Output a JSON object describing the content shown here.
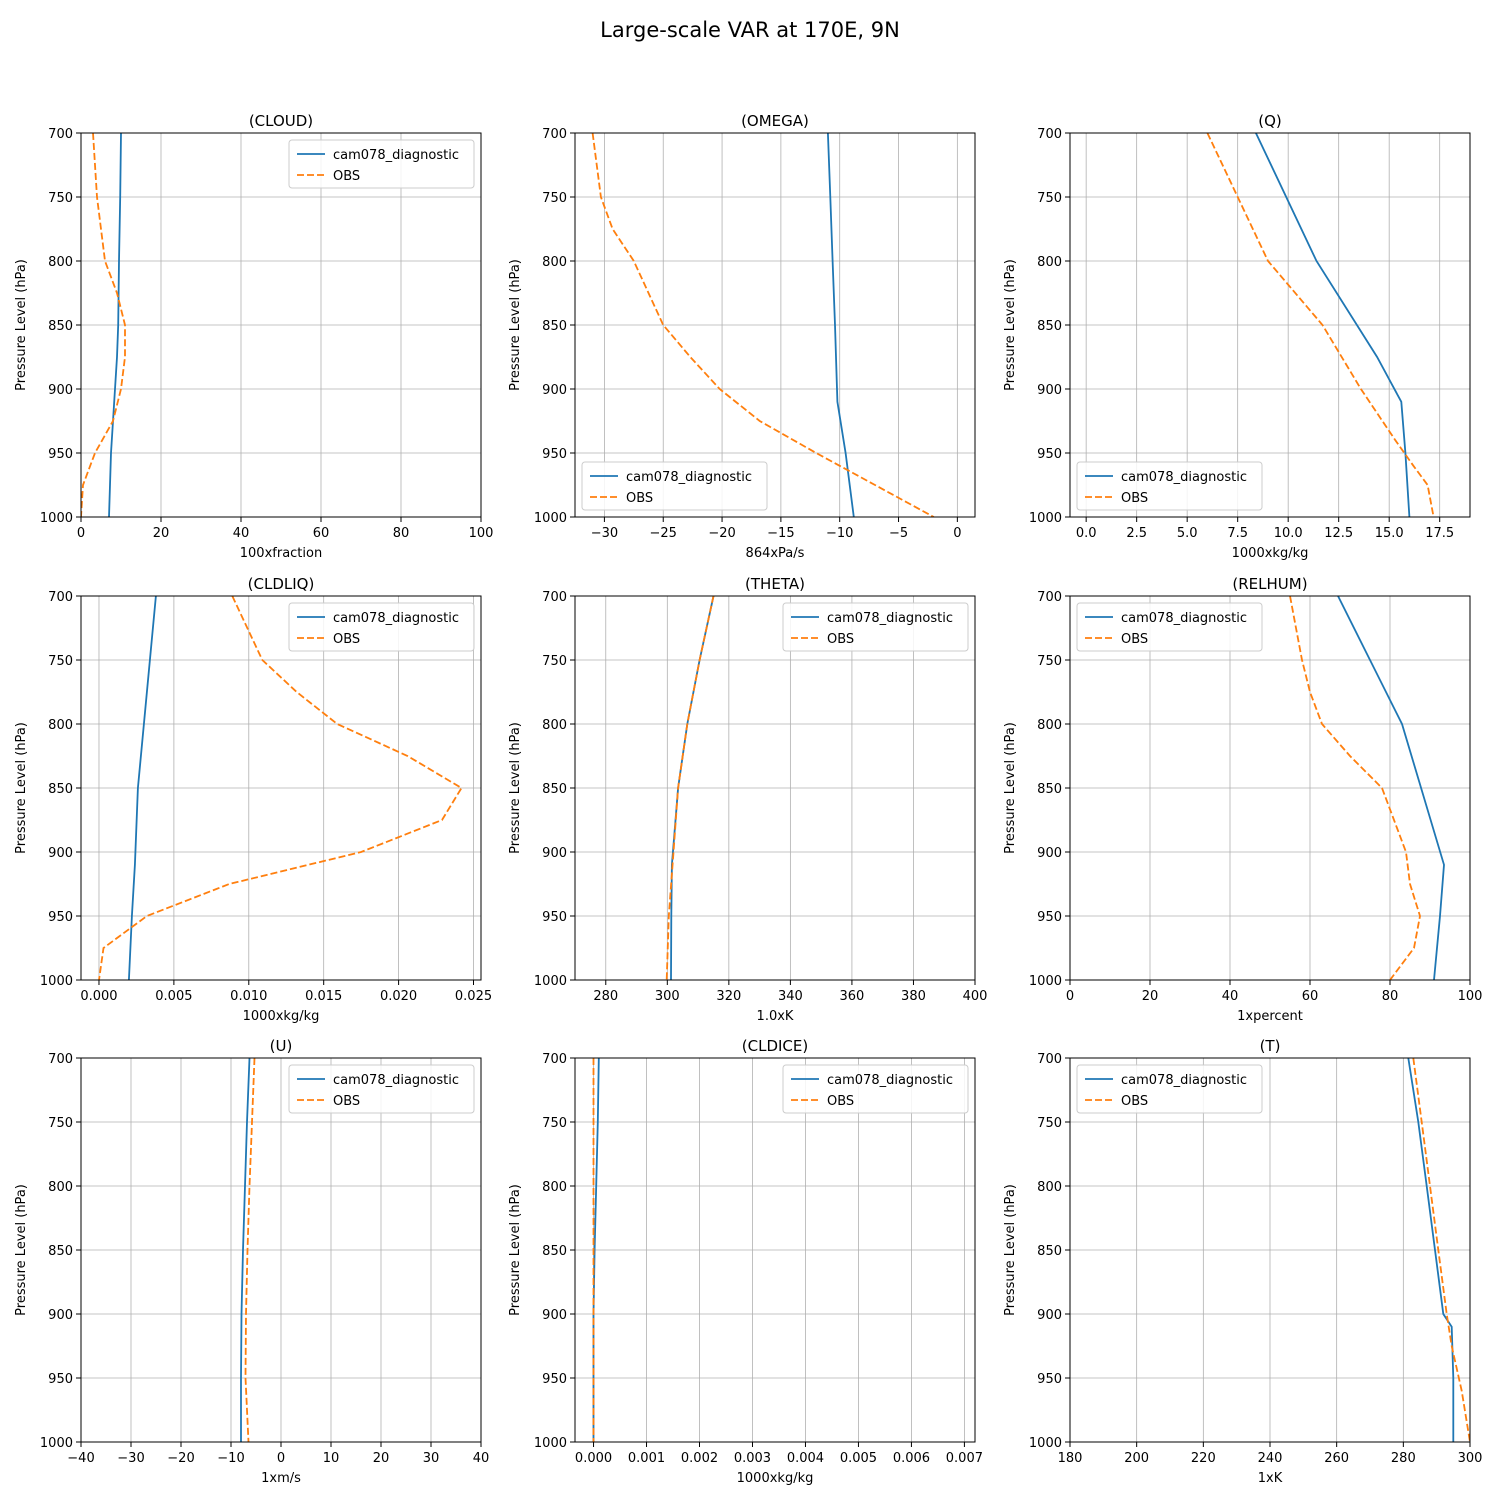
{
  "figure": {
    "title": "Large-scale VAR at 170E, 9N"
  },
  "colors": {
    "model": "#1f77b4",
    "obs": "#ff7f0e",
    "grid": "#b0b0b0"
  },
  "chart_data": [
    {
      "type": "line",
      "title": "(CLOUD)",
      "xlabel": "100xfraction",
      "ylabel": "Pressure Level (hPa)",
      "xlim": [
        0,
        100
      ],
      "ylim": [
        1000,
        700
      ],
      "grid": true,
      "legend": "top-right",
      "xticks": [
        0,
        20,
        40,
        60,
        80,
        100
      ],
      "xtick_labels": [
        "0",
        "20",
        "40",
        "60",
        "80",
        "100"
      ],
      "yticks": [
        700,
        750,
        800,
        850,
        900,
        950,
        1000
      ],
      "ytick_labels": [
        "700",
        "750",
        "800",
        "850",
        "900",
        "950",
        "1000"
      ],
      "series": [
        {
          "name": "cam078_diagnostic",
          "style": "solid",
          "x": [
            10,
            9.8,
            9.5,
            9.3,
            9,
            8.5,
            8,
            7.5,
            7
          ],
          "y": [
            700,
            750,
            800,
            850,
            875,
            900,
            925,
            950,
            1000
          ]
        },
        {
          "name": "OBS",
          "style": "dashed",
          "x": [
            3,
            4,
            6,
            9,
            11,
            11,
            10,
            8,
            3.5,
            0.5,
            0
          ],
          "y": [
            700,
            750,
            800,
            825,
            850,
            875,
            900,
            925,
            950,
            975,
            1000
          ]
        }
      ]
    },
    {
      "type": "line",
      "title": "(OMEGA)",
      "xlabel": "864xPa/s",
      "ylabel": "Pressure Level (hPa)",
      "xlim": [
        -32.5,
        1.5
      ],
      "ylim": [
        1000,
        700
      ],
      "grid": true,
      "legend": "bottom-left",
      "xticks": [
        -30,
        -25,
        -20,
        -15,
        -10,
        -5,
        0
      ],
      "xtick_labels": [
        "−30",
        "−25",
        "−20",
        "−15",
        "−10",
        "−5",
        "0"
      ],
      "yticks": [
        700,
        750,
        800,
        850,
        900,
        950,
        1000
      ],
      "ytick_labels": [
        "700",
        "750",
        "800",
        "850",
        "900",
        "950",
        "1000"
      ],
      "series": [
        {
          "name": "cam078_diagnostic",
          "style": "solid",
          "x": [
            -11,
            -10.8,
            -10.6,
            -10.4,
            -10.2,
            -9.5,
            -8.8
          ],
          "y": [
            700,
            750,
            800,
            850,
            910,
            950,
            1000
          ]
        },
        {
          "name": "OBS",
          "style": "dashed",
          "x": [
            -31,
            -30.3,
            -29.3,
            -27.5,
            -25,
            -22.7,
            -20.2,
            -16.8,
            -12,
            -7,
            -2
          ],
          "y": [
            700,
            750,
            775,
            800,
            850,
            875,
            900,
            925,
            950,
            975,
            1000
          ]
        }
      ]
    },
    {
      "type": "line",
      "title": "(Q)",
      "xlabel": "1000xkg/kg",
      "ylabel": "Pressure Level (hPa)",
      "xlim": [
        -0.8,
        19
      ],
      "ylim": [
        1000,
        700
      ],
      "grid": true,
      "legend": "bottom-left",
      "xticks": [
        0,
        2.5,
        5,
        7.5,
        10,
        12.5,
        15,
        17.5
      ],
      "xtick_labels": [
        "0.0",
        "2.5",
        "5.0",
        "7.5",
        "10.0",
        "12.5",
        "15.0",
        "17.5"
      ],
      "yticks": [
        700,
        750,
        800,
        850,
        900,
        950,
        1000
      ],
      "ytick_labels": [
        "700",
        "750",
        "800",
        "850",
        "900",
        "950",
        "1000"
      ],
      "series": [
        {
          "name": "cam078_diagnostic",
          "style": "solid",
          "x": [
            8.4,
            11.4,
            14.4,
            15.6,
            15.8,
            16.0
          ],
          "y": [
            700,
            800,
            875,
            910,
            950,
            1000
          ]
        },
        {
          "name": "OBS",
          "style": "dashed",
          "x": [
            6,
            7.5,
            9,
            11.7,
            13.6,
            15.3,
            16.2,
            16.9,
            17.2
          ],
          "y": [
            700,
            750,
            800,
            850,
            900,
            940,
            960,
            975,
            1000
          ]
        }
      ]
    },
    {
      "type": "line",
      "title": "(CLDLIQ)",
      "xlabel": "1000xkg/kg",
      "ylabel": "Pressure Level (hPa)",
      "xlim": [
        -0.0012,
        0.0255
      ],
      "ylim": [
        1000,
        700
      ],
      "grid": true,
      "legend": "top-right",
      "xticks": [
        0,
        0.005,
        0.01,
        0.015,
        0.02,
        0.025
      ],
      "xtick_labels": [
        "0.000",
        "0.005",
        "0.010",
        "0.015",
        "0.020",
        "0.025"
      ],
      "yticks": [
        700,
        750,
        800,
        850,
        900,
        950,
        1000
      ],
      "ytick_labels": [
        "700",
        "750",
        "800",
        "850",
        "900",
        "950",
        "1000"
      ],
      "series": [
        {
          "name": "cam078_diagnostic",
          "style": "solid",
          "x": [
            0.0038,
            0.0034,
            0.003,
            0.0026,
            0.0024,
            0.0022,
            0.002
          ],
          "y": [
            700,
            750,
            800,
            850,
            910,
            950,
            1000
          ]
        },
        {
          "name": "OBS",
          "style": "dashed",
          "x": [
            0.0089,
            0.0109,
            0.0132,
            0.0159,
            0.0206,
            0.0242,
            0.0229,
            0.0175,
            0.0087,
            0.0032,
            0.0003,
            0.0
          ],
          "y": [
            700,
            750,
            775,
            800,
            825,
            850,
            875,
            900,
            925,
            950,
            975,
            1000
          ]
        }
      ]
    },
    {
      "type": "line",
      "title": "(THETA)",
      "xlabel": "1.0xK",
      "ylabel": "Pressure Level (hPa)",
      "xlim": [
        270,
        400
      ],
      "ylim": [
        1000,
        700
      ],
      "grid": true,
      "legend": "top-right",
      "xticks": [
        280,
        300,
        320,
        340,
        360,
        380,
        400
      ],
      "xtick_labels": [
        "280",
        "300",
        "320",
        "340",
        "360",
        "380",
        "400"
      ],
      "yticks": [
        700,
        750,
        800,
        850,
        900,
        950,
        1000
      ],
      "ytick_labels": [
        "700",
        "750",
        "800",
        "850",
        "900",
        "950",
        "1000"
      ],
      "series": [
        {
          "name": "cam078_diagnostic",
          "style": "solid",
          "x": [
            315,
            310.5,
            306.5,
            303.5,
            301.5,
            301.3,
            301.2
          ],
          "y": [
            700,
            750,
            800,
            850,
            910,
            950,
            1000
          ]
        },
        {
          "name": "OBS",
          "style": "dashed",
          "x": [
            315,
            310.5,
            306.5,
            303.5,
            302,
            300.5,
            299.8
          ],
          "y": [
            700,
            750,
            800,
            850,
            900,
            950,
            1000
          ]
        }
      ]
    },
    {
      "type": "line",
      "title": "(RELHUM)",
      "xlabel": "1xpercent",
      "ylabel": "Pressure Level (hPa)",
      "xlim": [
        0,
        100
      ],
      "ylim": [
        1000,
        700
      ],
      "grid": true,
      "legend": "top-left",
      "xticks": [
        0,
        20,
        40,
        60,
        80,
        100
      ],
      "xtick_labels": [
        "0",
        "20",
        "40",
        "60",
        "80",
        "100"
      ],
      "yticks": [
        700,
        750,
        800,
        850,
        900,
        950,
        1000
      ],
      "ytick_labels": [
        "700",
        "750",
        "800",
        "850",
        "900",
        "950",
        "1000"
      ],
      "series": [
        {
          "name": "cam078_diagnostic",
          "style": "solid",
          "x": [
            67,
            75,
            83,
            93.5,
            92.5,
            91
          ],
          "y": [
            700,
            750,
            800,
            910,
            950,
            1000
          ]
        },
        {
          "name": "OBS",
          "style": "dashed",
          "x": [
            55,
            58,
            60,
            63,
            70,
            78,
            81,
            84,
            85,
            87.5,
            86,
            80
          ],
          "y": [
            700,
            750,
            775,
            800,
            825,
            850,
            875,
            900,
            925,
            950,
            975,
            1000
          ]
        }
      ]
    },
    {
      "type": "line",
      "title": "(U)",
      "xlabel": "1xm/s",
      "ylabel": "Pressure Level (hPa)",
      "xlim": [
        -40,
        40
      ],
      "ylim": [
        1000,
        700
      ],
      "grid": true,
      "legend": "top-right",
      "xticks": [
        -40,
        -30,
        -20,
        -10,
        0,
        10,
        20,
        30,
        40
      ],
      "xtick_labels": [
        "−40",
        "−30",
        "−20",
        "−10",
        "0",
        "10",
        "20",
        "30",
        "40"
      ],
      "yticks": [
        700,
        750,
        800,
        850,
        900,
        950,
        1000
      ],
      "ytick_labels": [
        "700",
        "750",
        "800",
        "850",
        "900",
        "950",
        "1000"
      ],
      "series": [
        {
          "name": "cam078_diagnostic",
          "style": "solid",
          "x": [
            -6.3,
            -6.8,
            -7.2,
            -7.6,
            -7.9,
            -8.0,
            -8.0
          ],
          "y": [
            700,
            750,
            800,
            850,
            900,
            950,
            1000
          ]
        },
        {
          "name": "OBS",
          "style": "dashed",
          "x": [
            -5.3,
            -5.8,
            -6.3,
            -6.7,
            -7.0,
            -7.1,
            -6.5
          ],
          "y": [
            700,
            750,
            800,
            850,
            900,
            950,
            1000
          ]
        }
      ]
    },
    {
      "type": "line",
      "title": "(CLDICE)",
      "xlabel": "1000xkg/kg",
      "ylabel": "Pressure Level (hPa)",
      "xlim": [
        -0.00035,
        0.0072
      ],
      "ylim": [
        1000,
        700
      ],
      "grid": true,
      "legend": "top-right",
      "xticks": [
        0,
        0.001,
        0.002,
        0.003,
        0.004,
        0.005,
        0.006,
        0.007
      ],
      "xtick_labels": [
        "0.000",
        "0.001",
        "0.002",
        "0.003",
        "0.004",
        "0.005",
        "0.006",
        "0.007"
      ],
      "yticks": [
        700,
        750,
        800,
        850,
        900,
        950,
        1000
      ],
      "ytick_labels": [
        "700",
        "750",
        "800",
        "850",
        "900",
        "950",
        "1000"
      ],
      "series": [
        {
          "name": "cam078_diagnostic",
          "style": "solid",
          "x": [
            0.0001,
            8e-05,
            5e-05,
            2e-05,
            0.0,
            0.0,
            0.0
          ],
          "y": [
            700,
            750,
            800,
            850,
            900,
            950,
            1000
          ]
        },
        {
          "name": "OBS",
          "style": "dashed",
          "x": [
            0.0,
            0.0,
            0.0,
            0.0,
            0.0,
            0.0,
            0.0
          ],
          "y": [
            700,
            750,
            800,
            850,
            900,
            950,
            1000
          ]
        }
      ]
    },
    {
      "type": "line",
      "title": "(T)",
      "xlabel": "1xK",
      "ylabel": "Pressure Level (hPa)",
      "xlim": [
        180,
        300
      ],
      "ylim": [
        1000,
        700
      ],
      "grid": true,
      "legend": "top-left",
      "xticks": [
        180,
        200,
        220,
        240,
        260,
        280,
        300
      ],
      "xtick_labels": [
        "180",
        "200",
        "220",
        "240",
        "260",
        "280",
        "300"
      ],
      "yticks": [
        700,
        750,
        800,
        850,
        900,
        950,
        1000
      ],
      "ytick_labels": [
        "700",
        "750",
        "800",
        "850",
        "900",
        "950",
        "1000"
      ],
      "series": [
        {
          "name": "cam078_diagnostic",
          "style": "solid",
          "x": [
            281.5,
            284.5,
            287,
            289.5,
            292,
            294.5,
            295,
            295
          ],
          "y": [
            700,
            750,
            800,
            850,
            900,
            910,
            950,
            1000
          ]
        },
        {
          "name": "OBS",
          "style": "dashed",
          "x": [
            283,
            285.5,
            288,
            290.5,
            293,
            294.5,
            297.5,
            300
          ],
          "y": [
            700,
            750,
            800,
            850,
            900,
            925,
            960,
            1000
          ]
        }
      ]
    }
  ]
}
